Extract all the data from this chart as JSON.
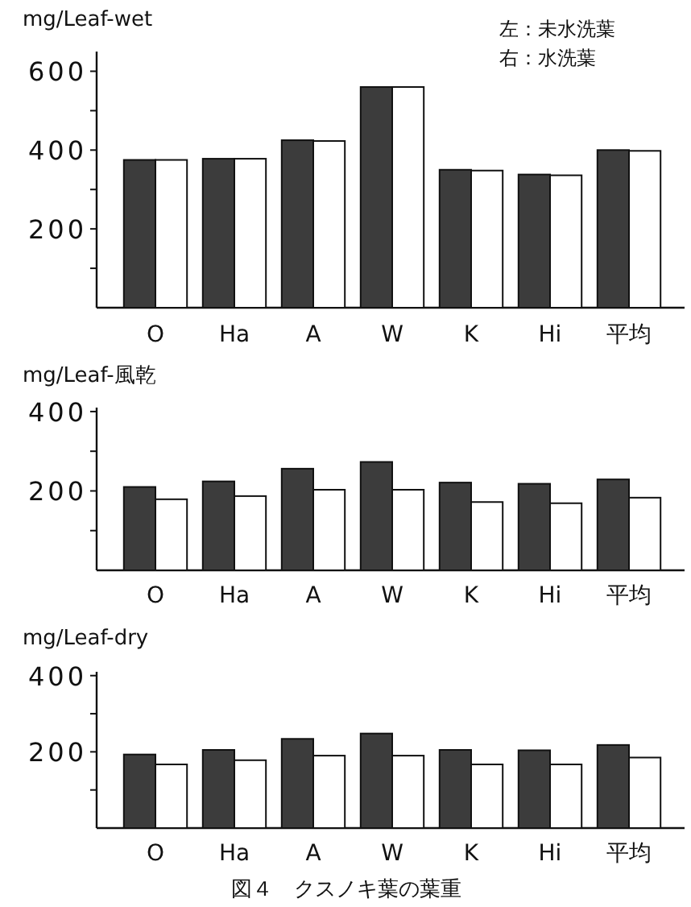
{
  "chart_data": [
    {
      "type": "bar",
      "ylabel": "mg/Leaf-wet",
      "categories": [
        "O",
        "Ha",
        "A",
        "W",
        "K",
        "Hi",
        "平均"
      ],
      "series": [
        {
          "color": "#3c3c3c",
          "values": [
            375,
            378,
            425,
            560,
            350,
            338,
            400
          ]
        },
        {
          "color": "#ffffff",
          "values": [
            375,
            378,
            423,
            560,
            348,
            336,
            398
          ]
        }
      ],
      "ylim": [
        0,
        650
      ],
      "yticks": [
        {
          "value": 100,
          "label": null
        },
        200,
        {
          "value": 300,
          "label": null
        },
        400,
        {
          "value": 500,
          "label": null
        },
        600
      ],
      "annotations": [
        "左：未水洗葉",
        "右：水洗葉"
      ]
    },
    {
      "type": "bar",
      "ylabel": "mg/Leaf-風乾",
      "categories": [
        "O",
        "Ha",
        "A",
        "W",
        "K",
        "Hi",
        "平均"
      ],
      "series": [
        {
          "color": "#3c3c3c",
          "values": [
            210,
            224,
            256,
            273,
            221,
            218,
            229
          ]
        },
        {
          "color": "#ffffff",
          "values": [
            179,
            187,
            203,
            203,
            172,
            169,
            183
          ]
        }
      ],
      "ylim": [
        0,
        410
      ],
      "yticks": [
        {
          "value": 100,
          "label": null
        },
        200,
        {
          "value": 300,
          "label": null
        },
        400
      ]
    },
    {
      "type": "bar",
      "ylabel": "mg/Leaf-dry",
      "categories": [
        "O",
        "Ha",
        "A",
        "W",
        "K",
        "Hi",
        "平均"
      ],
      "series": [
        {
          "color": "#3c3c3c",
          "values": [
            193,
            205,
            234,
            248,
            205,
            204,
            218
          ]
        },
        {
          "color": "#ffffff",
          "values": [
            167,
            178,
            190,
            190,
            167,
            167,
            185
          ]
        }
      ],
      "ylim": [
        0,
        410
      ],
      "yticks": [
        {
          "value": 100,
          "label": null
        },
        200,
        {
          "value": 300,
          "label": null
        },
        400
      ],
      "annotations": [
        "図４　クスノキ葉の葉重"
      ]
    }
  ]
}
